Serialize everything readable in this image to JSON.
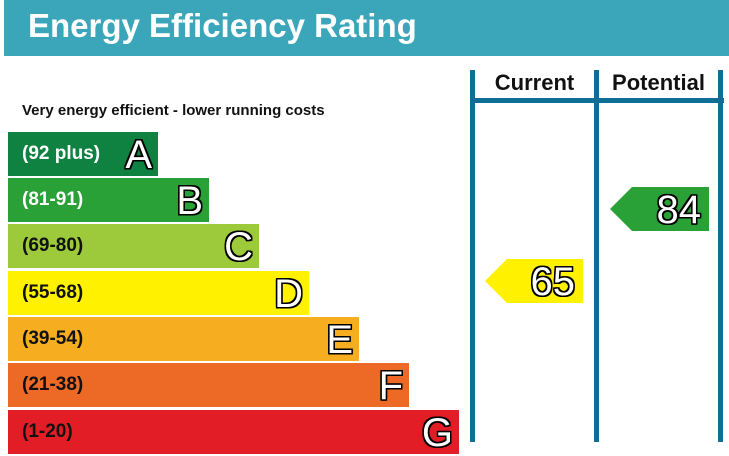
{
  "chart_data": {
    "type": "bar",
    "title": "Energy Efficiency Rating",
    "subtitle": "Very energy efficient - lower running costs",
    "columns": [
      "Current",
      "Potential"
    ],
    "bands": [
      {
        "letter": "A",
        "range": "(92 plus)",
        "color": "#0f8140",
        "text_color": "#ffffff"
      },
      {
        "letter": "B",
        "range": "(81-91)",
        "color": "#2aa136",
        "text_color": "#ffffff"
      },
      {
        "letter": "C",
        "range": "(69-80)",
        "color": "#9dca3b",
        "text_color": "#111111"
      },
      {
        "letter": "D",
        "range": "(55-68)",
        "color": "#fff100",
        "text_color": "#111111"
      },
      {
        "letter": "E",
        "range": "(39-54)",
        "color": "#f6ad1f",
        "text_color": "#111111"
      },
      {
        "letter": "F",
        "range": "(21-38)",
        "color": "#ec6a25",
        "text_color": "#111111"
      },
      {
        "letter": "G",
        "range": "(1-20)",
        "color": "#e31d25",
        "text_color": "#111111"
      }
    ],
    "current": {
      "value": "65",
      "band": "D",
      "color": "#fff100"
    },
    "potential": {
      "value": "84",
      "band": "B",
      "color": "#2aa136"
    }
  }
}
